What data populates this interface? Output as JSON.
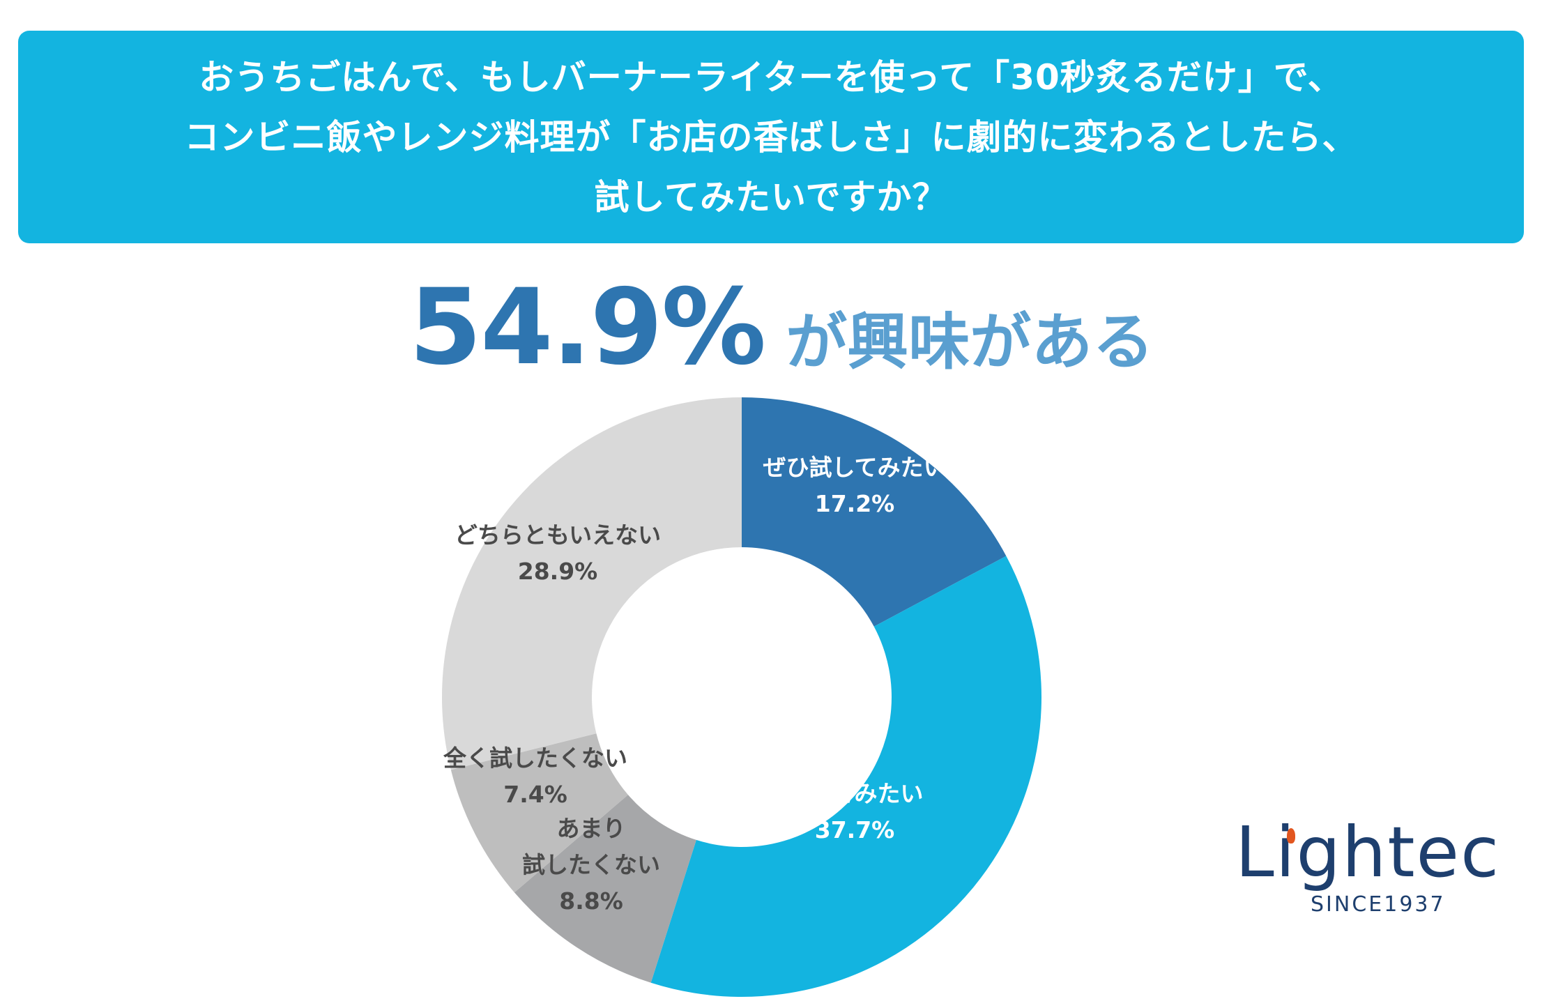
{
  "question": {
    "lines": [
      "おうちごはんで、もしバーナーライターを使って「30秒炙るだけ」で、",
      "コンビニ飯やレンジ料理が「お店の香ばしさ」に劇的に変わるとしたら、",
      "試してみたいですか？"
    ]
  },
  "headline": {
    "percent": "54.9%",
    "suffix": "が興味がある"
  },
  "chart_data": {
    "type": "pie",
    "donut": true,
    "slices": [
      {
        "label": "ぜひ試してみたい",
        "value": 17.2,
        "value_label": "17.2%",
        "color": "#2e75b0",
        "text_color": "#ffffff"
      },
      {
        "label": "やや\n試してみたい",
        "value": 37.7,
        "value_label": "37.7%",
        "color": "#13b4e0",
        "text_color": "#ffffff"
      },
      {
        "label": "あまり\n試したくない",
        "value": 8.8,
        "value_label": "8.8%",
        "color": "#a6a7a9",
        "text_color": "#4a4a4a"
      },
      {
        "label": "全く試したくない",
        "value": 7.4,
        "value_label": "7.4%",
        "color": "#bebebe",
        "text_color": "#4a4a4a"
      },
      {
        "label": "どちらともいえない",
        "value": 28.9,
        "value_label": "28.9%",
        "color": "#d9d9d9",
        "text_color": "#4a4a4a"
      }
    ]
  },
  "logo": {
    "name": "Lightec",
    "tagline": "SINCE1937"
  },
  "colors": {
    "header_bg": "#13b4e0",
    "headline_percent": "#2e75b0",
    "headline_suffix": "#5a9fd0",
    "logo": "#1e3f6e",
    "logo_flame": "#e2561f"
  }
}
